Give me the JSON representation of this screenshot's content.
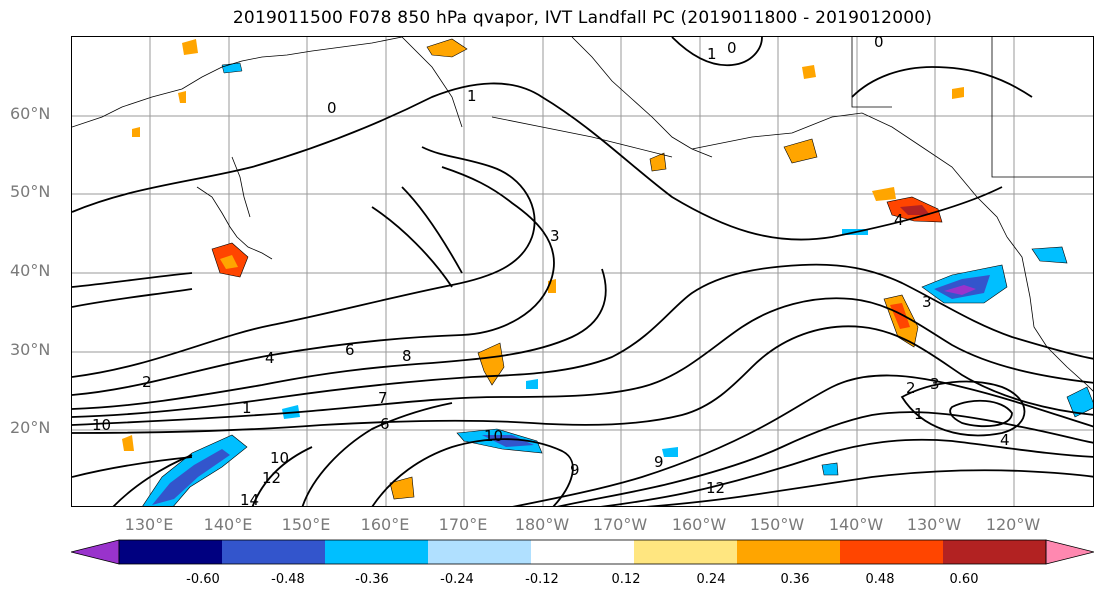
{
  "title": "2019011500 F078 850 hPa qvapor, IVT Landfall PC (2019011800 - 2019012000)",
  "lat_labels": [
    "60°N",
    "50°N",
    "40°N",
    "30°N",
    "20°N"
  ],
  "lon_labels": [
    "130°E",
    "140°E",
    "150°E",
    "160°E",
    "170°E",
    "180°W",
    "170°W",
    "160°W",
    "150°W",
    "140°W",
    "130°W",
    "120°W"
  ],
  "contour_labels": [
    "0",
    "1",
    "0",
    "0",
    "1",
    "3",
    "4",
    "6",
    "8",
    "7",
    "6",
    "10",
    "10",
    "10",
    "12",
    "14",
    "9",
    "12",
    "9",
    "3",
    "4",
    "3",
    "2",
    "1",
    "4",
    "1",
    "2"
  ],
  "colorbar": {
    "ticks": [
      "-0.60",
      "-0.48",
      "-0.36",
      "-0.24",
      "-0.12",
      "0.12",
      "0.24",
      "0.36",
      "0.48",
      "0.60"
    ],
    "colors": [
      "#9933cc",
      "#000080",
      "#3355cc",
      "#00bfff",
      "#b0e0ff",
      "#ffffff",
      "#ffe680",
      "#ffa500",
      "#ff4500",
      "#b22222",
      "#ff88b0"
    ]
  }
}
